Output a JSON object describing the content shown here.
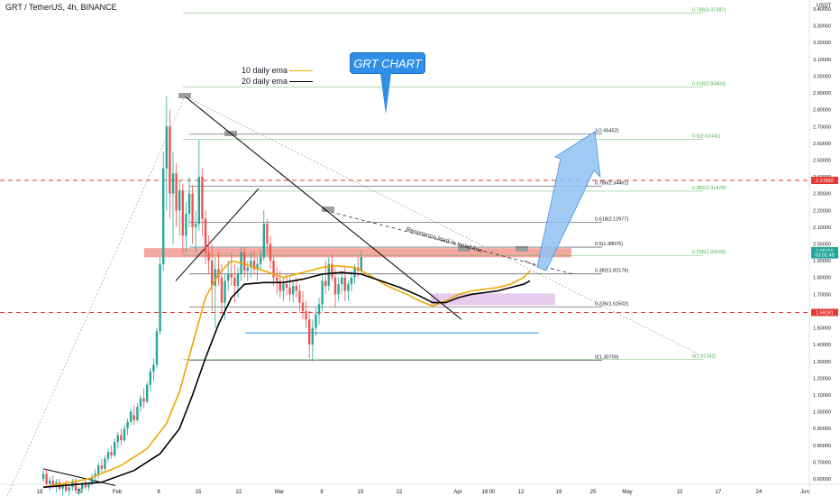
{
  "header": {
    "title": "GRT / TetherUS, 4h, BINANCE"
  },
  "callout": {
    "label": "GRT CHART"
  },
  "legend": {
    "ema10": "10 daily ema",
    "ema20": "20 daily ema"
  },
  "annotation": {
    "trend_text": "Resistance lead in trend line"
  },
  "colors": {
    "bull": "#26a69a",
    "bear": "#ef5350",
    "ema10": "#f0a500",
    "ema20": "#000000",
    "fib": "#131722",
    "fib_green": "#4caf50",
    "support": "#e53935",
    "blue_line": "#2196f3",
    "accent": "#2e8ee8",
    "resistance_zone": "#f28b82",
    "demand_zone": "#e1bee7"
  },
  "chart_data": {
    "type": "candlestick",
    "y_axis_label": "USDT",
    "y_ticks": [
      "3.40000",
      "3.30000",
      "3.20000",
      "3.10000",
      "3.00000",
      "2.90000",
      "2.80000",
      "2.70000",
      "2.60000",
      "2.50000",
      "2.40000",
      "2.30000",
      "2.20000",
      "2.10000",
      "2.00000",
      "1.90000",
      "1.80000",
      "1.70000",
      "1.60000",
      "1.50000",
      "1.40000",
      "1.30000",
      "1.20000",
      "1.10000",
      "1.00000",
      "0.90000",
      "0.80000",
      "0.70000",
      "0.60000"
    ],
    "x_ticks": [
      "18",
      "25",
      "Feb",
      "8",
      "15",
      "22",
      "Mar",
      "8",
      "15",
      "22",
      "Apr",
      "18:00",
      "12",
      "19",
      "25",
      "May",
      "10",
      "17",
      "24",
      "Jun"
    ],
    "price_badges": [
      {
        "label": "2.37892",
        "value": 2.37892,
        "color": "#e53935"
      },
      {
        "label": "1.96015",
        "value": 1.96015,
        "color": "#26a69a"
      },
      {
        "label": "03:01:49",
        "value": 1.935,
        "color": "#26a69a"
      },
      {
        "label": "1.59181",
        "value": 1.59181,
        "color": "#e53935"
      }
    ],
    "fib_right": [
      {
        "label": "1(2.65452)",
        "value": 2.65452
      },
      {
        "label": "0.786(2.34461)",
        "value": 2.34461
      },
      {
        "label": "0.618(2.12977)",
        "value": 2.12977
      },
      {
        "label": "0.5(1.98076)",
        "value": 1.98076
      },
      {
        "label": "0.382(1.82176)",
        "value": 1.82176
      },
      {
        "label": "0.236(1.62502)",
        "value": 1.62502
      },
      {
        "label": "0(1.30700)",
        "value": 1.307
      }
    ],
    "fib_left": [
      {
        "label": "0.786(3.37487)",
        "value": 3.37487
      },
      {
        "label": "0.618(2.93404)",
        "value": 2.93404
      },
      {
        "label": "0.5(2.62441)",
        "value": 2.62441
      },
      {
        "label": "0.382(2.31478)",
        "value": 2.31478
      },
      {
        "label": "0.236(1.93169)",
        "value": 1.93169
      },
      {
        "label": "0(1.31242)",
        "value": 1.31242
      }
    ],
    "support_lines": [
      2.37892,
      1.59181
    ],
    "blue_line": 1.47,
    "resistance_zone": [
      1.92,
      1.975
    ],
    "demand_zone": [
      1.635,
      1.705
    ],
    "ema10": [
      [
        0,
        0.55
      ],
      [
        14,
        0.6
      ],
      [
        24,
        0.68
      ],
      [
        32,
        0.78
      ],
      [
        38,
        0.93
      ],
      [
        42,
        1.12
      ],
      [
        46,
        1.4
      ],
      [
        50,
        1.68
      ],
      [
        54,
        1.82
      ],
      [
        58,
        1.9
      ],
      [
        62,
        1.88
      ],
      [
        68,
        1.84
      ],
      [
        74,
        1.8
      ],
      [
        80,
        1.83
      ],
      [
        86,
        1.86
      ],
      [
        90,
        1.87
      ],
      [
        96,
        1.86
      ],
      [
        100,
        1.82
      ],
      [
        106,
        1.75
      ],
      [
        112,
        1.7
      ],
      [
        116,
        1.66
      ],
      [
        120,
        1.63
      ],
      [
        124,
        1.66
      ],
      [
        128,
        1.7
      ],
      [
        132,
        1.72
      ],
      [
        136,
        1.73
      ],
      [
        140,
        1.74
      ],
      [
        144,
        1.76
      ],
      [
        148,
        1.8
      ],
      [
        150,
        1.84
      ]
    ],
    "ema20": [
      [
        0,
        0.55
      ],
      [
        18,
        0.58
      ],
      [
        28,
        0.65
      ],
      [
        36,
        0.75
      ],
      [
        42,
        0.9
      ],
      [
        46,
        1.1
      ],
      [
        50,
        1.32
      ],
      [
        54,
        1.52
      ],
      [
        58,
        1.68
      ],
      [
        62,
        1.76
      ],
      [
        68,
        1.77
      ],
      [
        74,
        1.77
      ],
      [
        80,
        1.79
      ],
      [
        86,
        1.82
      ],
      [
        92,
        1.83
      ],
      [
        98,
        1.82
      ],
      [
        104,
        1.78
      ],
      [
        110,
        1.74
      ],
      [
        116,
        1.69
      ],
      [
        120,
        1.65
      ],
      [
        124,
        1.65
      ],
      [
        128,
        1.68
      ],
      [
        132,
        1.7
      ],
      [
        136,
        1.71
      ],
      [
        140,
        1.72
      ],
      [
        144,
        1.74
      ],
      [
        148,
        1.76
      ],
      [
        150,
        1.78
      ]
    ],
    "candles": [
      [
        0.6,
        0.65,
        0.58,
        0.63
      ],
      [
        0.63,
        0.66,
        0.56,
        0.57
      ],
      [
        0.57,
        0.61,
        0.53,
        0.59
      ],
      [
        0.59,
        0.62,
        0.54,
        0.55
      ],
      [
        0.55,
        0.6,
        0.52,
        0.58
      ],
      [
        0.58,
        0.6,
        0.53,
        0.54
      ],
      [
        0.54,
        0.57,
        0.5,
        0.56
      ],
      [
        0.56,
        0.59,
        0.52,
        0.53
      ],
      [
        0.53,
        0.56,
        0.5,
        0.55
      ],
      [
        0.55,
        0.6,
        0.53,
        0.58
      ],
      [
        0.58,
        0.61,
        0.52,
        0.53
      ],
      [
        0.53,
        0.55,
        0.5,
        0.54
      ],
      [
        0.54,
        0.58,
        0.52,
        0.57
      ],
      [
        0.57,
        0.6,
        0.54,
        0.55
      ],
      [
        0.55,
        0.58,
        0.53,
        0.57
      ],
      [
        0.57,
        0.63,
        0.56,
        0.61
      ],
      [
        0.61,
        0.66,
        0.59,
        0.63
      ],
      [
        0.63,
        0.7,
        0.6,
        0.68
      ],
      [
        0.68,
        0.72,
        0.64,
        0.66
      ],
      [
        0.66,
        0.74,
        0.64,
        0.72
      ],
      [
        0.72,
        0.78,
        0.7,
        0.76
      ],
      [
        0.76,
        0.8,
        0.72,
        0.74
      ],
      [
        0.74,
        0.84,
        0.73,
        0.82
      ],
      [
        0.82,
        0.88,
        0.78,
        0.86
      ],
      [
        0.86,
        0.9,
        0.8,
        0.83
      ],
      [
        0.83,
        0.92,
        0.82,
        0.9
      ],
      [
        0.9,
        0.96,
        0.86,
        0.94
      ],
      [
        0.94,
        1.02,
        0.92,
        1.0
      ],
      [
        0.98,
        1.04,
        0.92,
        0.95
      ],
      [
        0.95,
        1.05,
        0.94,
        1.03
      ],
      [
        1.03,
        1.1,
        1.0,
        1.08
      ],
      [
        1.08,
        1.14,
        1.02,
        1.06
      ],
      [
        1.06,
        1.18,
        1.05,
        1.16
      ],
      [
        1.16,
        1.26,
        1.12,
        1.24
      ],
      [
        1.24,
        1.32,
        1.18,
        1.28
      ],
      [
        1.28,
        1.5,
        1.26,
        1.48
      ],
      [
        1.48,
        1.92,
        1.46,
        1.88
      ],
      [
        1.88,
        2.55,
        1.84,
        2.45
      ],
      [
        2.45,
        2.88,
        2.2,
        2.7
      ],
      [
        2.7,
        2.8,
        2.15,
        2.3
      ],
      [
        2.3,
        2.55,
        2.0,
        2.42
      ],
      [
        2.42,
        2.48,
        2.1,
        2.2
      ],
      [
        2.2,
        2.38,
        2.05,
        2.32
      ],
      [
        2.32,
        2.36,
        1.95,
        2.05
      ],
      [
        2.05,
        2.25,
        1.95,
        2.18
      ],
      [
        2.18,
        2.4,
        2.1,
        2.3
      ],
      [
        2.3,
        2.35,
        2.0,
        2.1
      ],
      [
        2.1,
        2.2,
        1.95,
        2.12
      ],
      [
        2.12,
        2.62,
        2.08,
        2.4
      ],
      [
        2.4,
        2.45,
        2.05,
        2.15
      ],
      [
        2.15,
        2.2,
        1.88,
        1.95
      ],
      [
        1.95,
        2.05,
        1.82,
        1.9
      ],
      [
        1.9,
        2.0,
        1.6,
        1.75
      ],
      [
        1.75,
        1.92,
        1.5,
        1.85
      ],
      [
        1.85,
        1.95,
        1.75,
        1.8
      ],
      [
        1.8,
        1.88,
        1.58,
        1.65
      ],
      [
        1.65,
        1.82,
        1.55,
        1.78
      ],
      [
        1.78,
        1.9,
        1.72,
        1.82
      ],
      [
        1.82,
        1.95,
        1.75,
        1.8
      ],
      [
        1.8,
        1.88,
        1.65,
        1.75
      ],
      [
        1.75,
        1.86,
        1.68,
        1.82
      ],
      [
        1.82,
        1.98,
        1.78,
        1.95
      ],
      [
        1.95,
        1.98,
        1.8,
        1.84
      ],
      [
        1.84,
        1.9,
        1.78,
        1.86
      ],
      [
        1.86,
        1.95,
        1.8,
        1.9
      ],
      [
        1.9,
        1.96,
        1.82,
        1.85
      ],
      [
        1.85,
        1.92,
        1.78,
        1.88
      ],
      [
        1.88,
        1.96,
        1.84,
        1.92
      ],
      [
        1.92,
        2.2,
        1.9,
        2.12
      ],
      [
        2.12,
        2.15,
        1.95,
        2.0
      ],
      [
        2.0,
        2.05,
        1.85,
        1.9
      ],
      [
        1.9,
        1.92,
        1.75,
        1.8
      ],
      [
        1.8,
        1.86,
        1.7,
        1.78
      ],
      [
        1.78,
        1.84,
        1.68,
        1.72
      ],
      [
        1.72,
        1.8,
        1.66,
        1.76
      ],
      [
        1.76,
        1.82,
        1.7,
        1.74
      ],
      [
        1.74,
        1.8,
        1.66,
        1.7
      ],
      [
        1.7,
        1.78,
        1.65,
        1.75
      ],
      [
        1.75,
        1.8,
        1.68,
        1.72
      ],
      [
        1.72,
        1.76,
        1.6,
        1.65
      ],
      [
        1.65,
        1.72,
        1.55,
        1.6
      ],
      [
        1.6,
        1.66,
        1.5,
        1.55
      ],
      [
        1.55,
        1.6,
        1.32,
        1.4
      ],
      [
        1.4,
        1.55,
        1.3,
        1.5
      ],
      [
        1.5,
        1.62,
        1.45,
        1.58
      ],
      [
        1.58,
        1.68,
        1.52,
        1.64
      ],
      [
        1.64,
        1.82,
        1.6,
        1.78
      ],
      [
        1.78,
        1.9,
        1.7,
        1.75
      ],
      [
        1.75,
        1.92,
        1.72,
        1.88
      ],
      [
        1.88,
        1.94,
        1.78,
        1.8
      ],
      [
        1.8,
        1.86,
        1.62,
        1.7
      ],
      [
        1.7,
        1.8,
        1.66,
        1.76
      ],
      [
        1.76,
        1.84,
        1.7,
        1.8
      ],
      [
        1.8,
        1.86,
        1.66,
        1.72
      ],
      [
        1.72,
        1.78,
        1.66,
        1.76
      ],
      [
        1.76,
        1.84,
        1.72,
        1.8
      ],
      [
        1.8,
        1.88,
        1.76,
        1.86
      ],
      [
        1.86,
        1.92,
        1.8,
        1.84
      ],
      [
        1.84,
        1.96,
        1.82,
        1.92
      ]
    ]
  }
}
